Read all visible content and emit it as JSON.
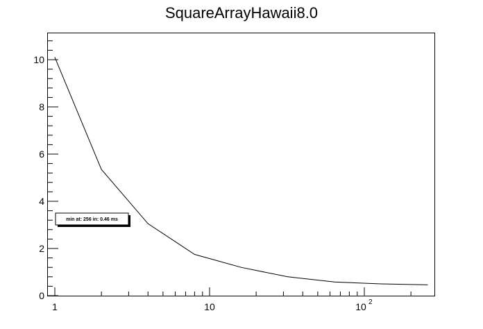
{
  "chart_data": {
    "type": "line",
    "title": "SquareArrayHawaii8.0",
    "xlabel": "",
    "ylabel": "",
    "x_scale": "log",
    "xlim": [
      0.9,
      260
    ],
    "ylim": [
      0,
      11.2
    ],
    "grid": false,
    "legend": "none",
    "x_tick_labels": [
      "1",
      "10",
      "10",
      "2"
    ],
    "y_ticks": [
      0,
      2,
      4,
      6,
      8,
      10
    ],
    "y_tick_labels": [
      "0",
      "2",
      "4",
      "6",
      "8",
      "10"
    ],
    "series": [
      {
        "x": [
          1,
          2,
          4,
          8,
          16,
          32,
          64,
          128,
          256
        ],
        "y": [
          10.1,
          5.35,
          3.05,
          1.75,
          1.2,
          0.8,
          0.58,
          0.5,
          0.46
        ]
      }
    ],
    "annotation": "min at: 256 in: 0.46 ms"
  },
  "colors": {
    "line": "#000000",
    "frame": "#000000",
    "background": "#ffffff"
  }
}
